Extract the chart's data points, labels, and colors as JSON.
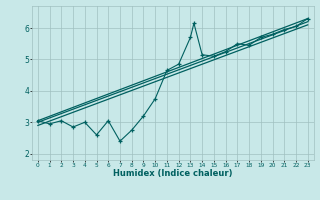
{
  "xlabel": "Humidex (Indice chaleur)",
  "ylabel": "",
  "bg_color": "#c8e8e8",
  "grid_color": "#a0c0c0",
  "line_color": "#006060",
  "xlim": [
    -0.5,
    23.5
  ],
  "ylim": [
    1.8,
    6.7
  ],
  "xticks": [
    0,
    1,
    2,
    3,
    4,
    5,
    6,
    7,
    8,
    9,
    10,
    11,
    12,
    13,
    14,
    15,
    16,
    17,
    18,
    19,
    20,
    21,
    22,
    23
  ],
  "yticks": [
    2,
    3,
    4,
    5,
    6
  ],
  "scatter_x": [
    0,
    1,
    2,
    3,
    4,
    5,
    6,
    7,
    8,
    9,
    10,
    11,
    12,
    13,
    13.3,
    14,
    15,
    16,
    17,
    18,
    19,
    20,
    21,
    22,
    23
  ],
  "scatter_y": [
    3.05,
    2.95,
    3.05,
    2.85,
    3.0,
    2.6,
    3.05,
    2.4,
    2.75,
    3.2,
    3.75,
    4.65,
    4.85,
    5.7,
    6.15,
    5.15,
    5.1,
    5.25,
    5.5,
    5.45,
    5.7,
    5.8,
    5.95,
    6.05,
    6.3
  ],
  "line1_x": [
    0,
    23
  ],
  "line1_y": [
    3.05,
    6.3
  ],
  "line2_x": [
    0,
    23
  ],
  "line2_y": [
    2.9,
    6.1
  ],
  "line3_x": [
    0,
    23
  ],
  "line3_y": [
    3.0,
    6.2
  ]
}
